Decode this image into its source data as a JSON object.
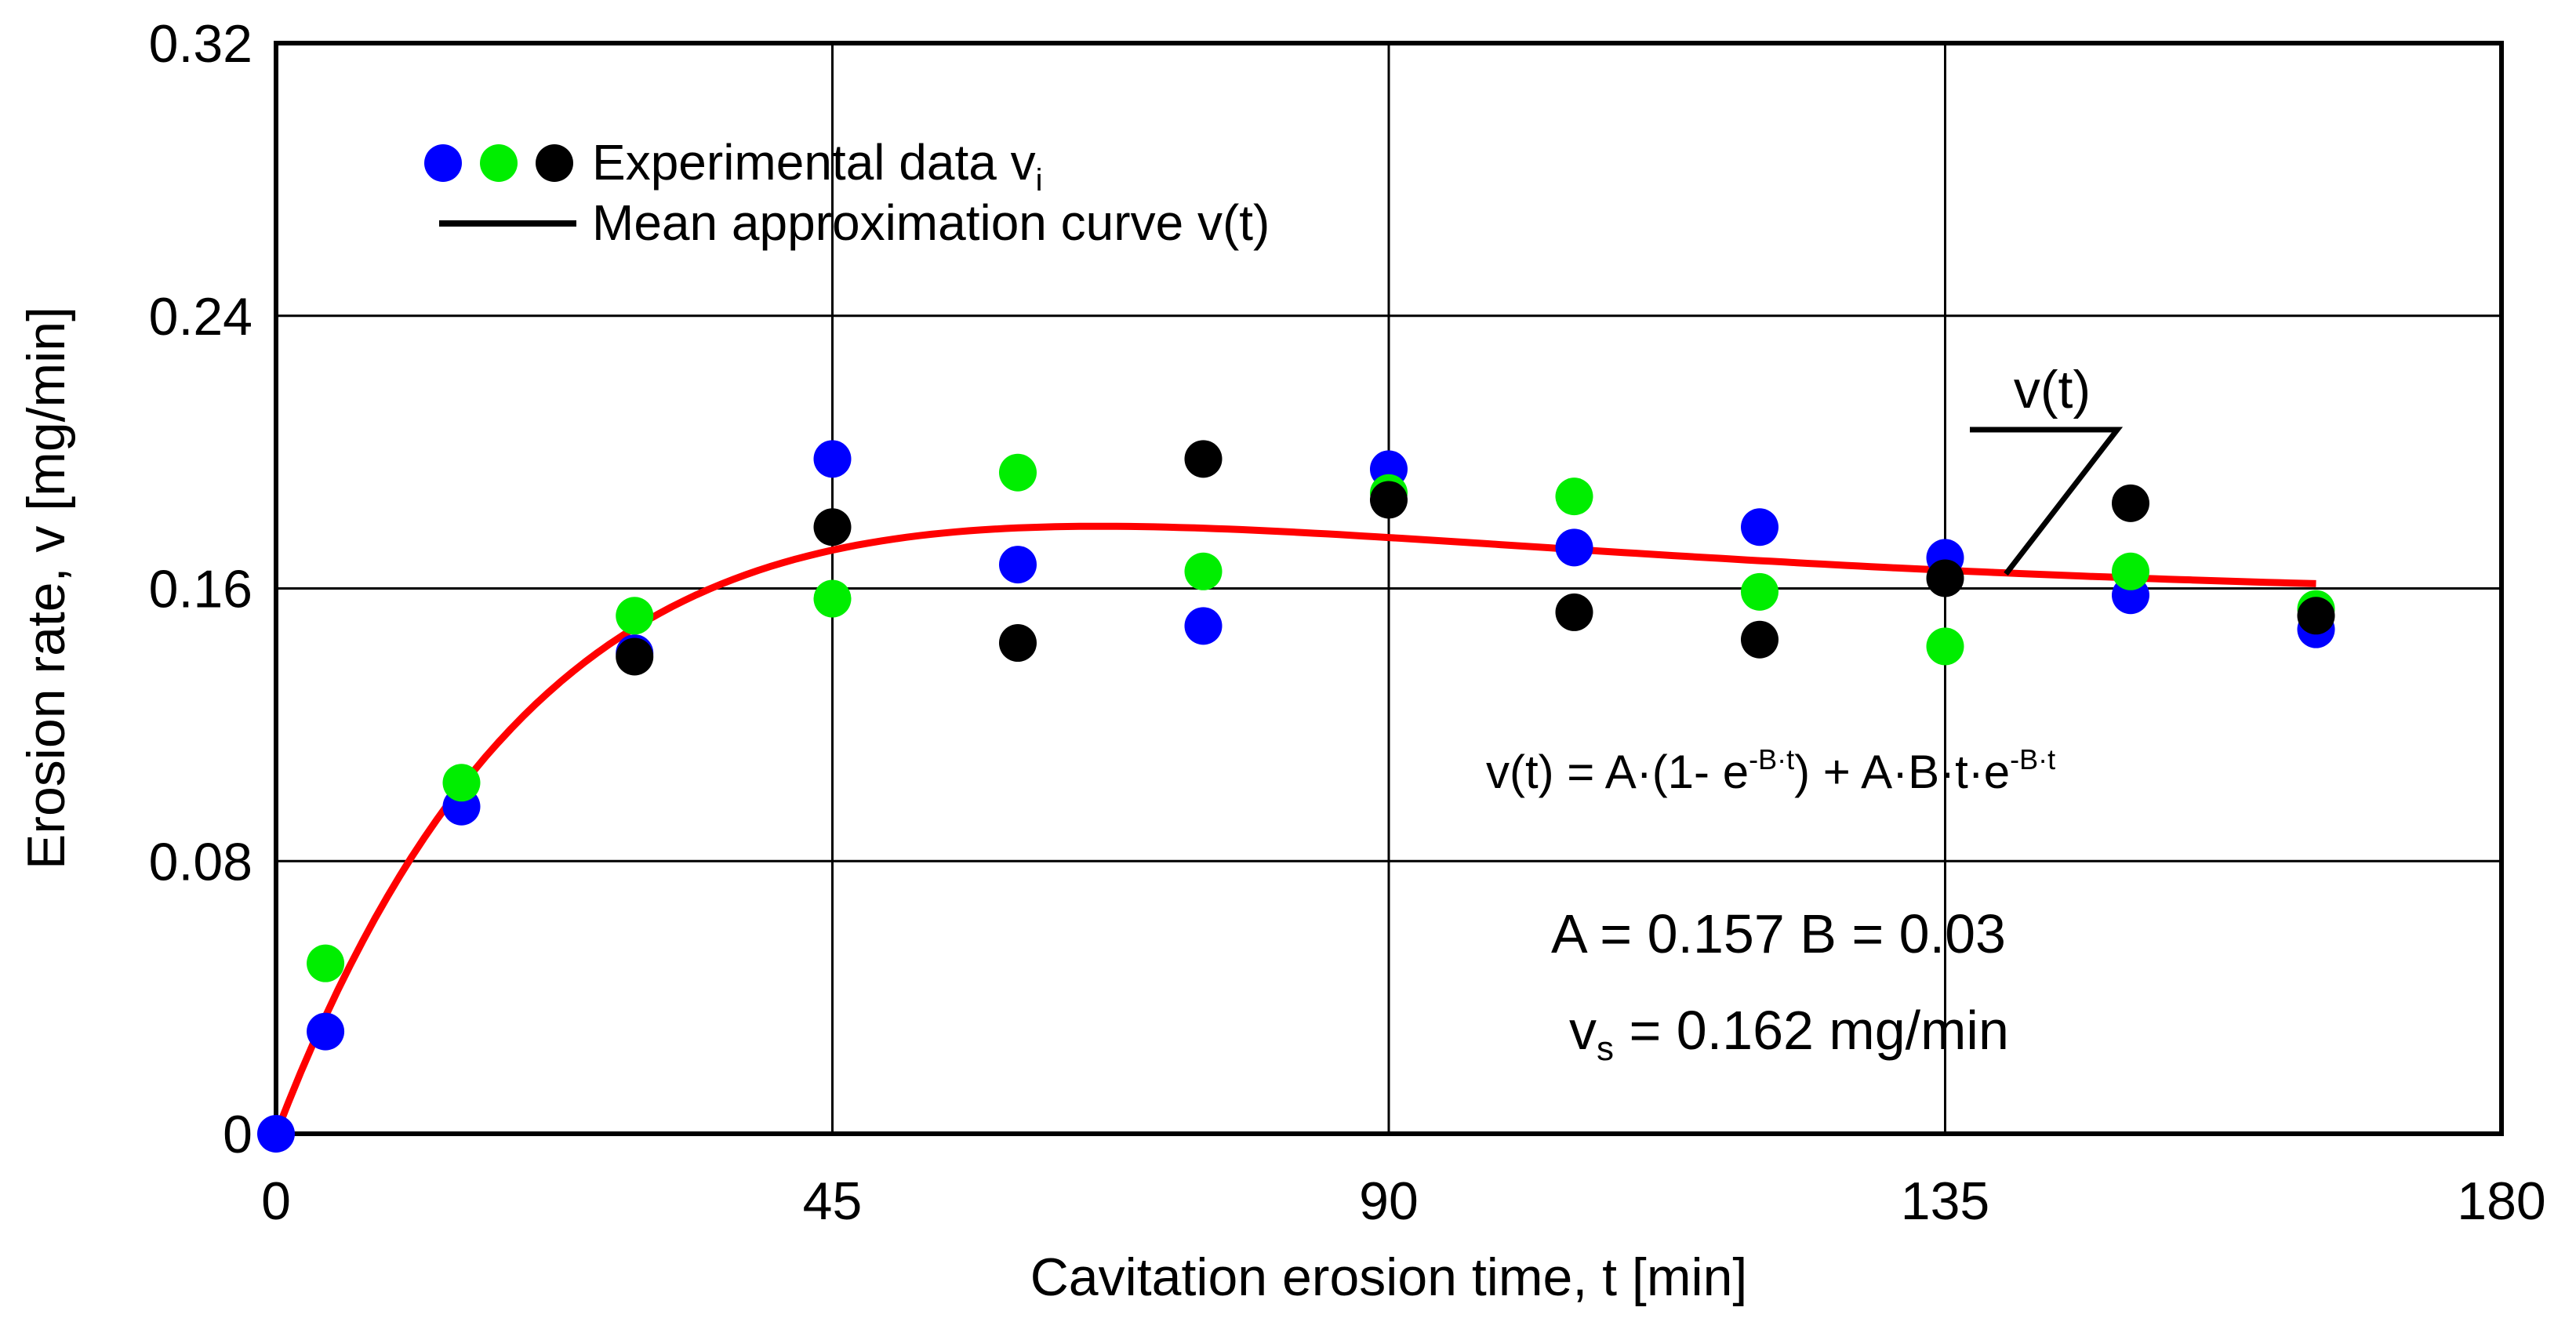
{
  "chart_data": {
    "type": "scatter",
    "title": "",
    "xlabel": "Cavitation erosion time, t [min]",
    "ylabel": "Erosion rate, v [mg/min]",
    "xlim": [
      0,
      180
    ],
    "ylim": [
      0,
      0.32
    ],
    "x_ticks": [
      0,
      45,
      90,
      135,
      180
    ],
    "x_tick_labels": [
      "0",
      "45",
      "90",
      "135",
      "180"
    ],
    "y_ticks": [
      0,
      0.08,
      0.16,
      0.24,
      0.32
    ],
    "y_tick_labels": [
      "0",
      "0.08",
      "0.16",
      "0.24",
      "0.32"
    ],
    "grid": true,
    "legend": {
      "position": "top-left",
      "scatter_label": "Experimental data v",
      "scatter_subscript": "i",
      "line_label": "Mean approximation curve v(t)"
    },
    "series": [
      {
        "name": "Experimental data (blue)",
        "color": "#0000ff",
        "x": [
          0,
          4,
          15,
          29,
          45,
          60,
          75,
          90,
          105,
          120,
          135,
          150,
          165
        ],
        "y": [
          0,
          0.03,
          0.096,
          0.141,
          0.198,
          0.167,
          0.149,
          0.195,
          0.172,
          0.178,
          0.169,
          0.158,
          0.148
        ]
      },
      {
        "name": "Experimental data (green)",
        "color": "#00ee00",
        "x": [
          4,
          15,
          29,
          45,
          60,
          75,
          90,
          105,
          120,
          135,
          150,
          165
        ],
        "y": [
          0.05,
          0.103,
          0.152,
          0.157,
          0.194,
          0.165,
          0.188,
          0.187,
          0.159,
          0.143,
          0.165,
          0.154
        ]
      },
      {
        "name": "Experimental data (black)",
        "color": "#000000",
        "x": [
          29,
          45,
          60,
          75,
          90,
          105,
          120,
          135,
          150,
          165
        ],
        "y": [
          0.14,
          0.178,
          0.144,
          0.198,
          0.186,
          0.153,
          0.145,
          0.163,
          0.185,
          0.152
        ]
      },
      {
        "name": "Mean approximation curve v(t)",
        "type": "line",
        "color": "#ff0000",
        "function": "A*(1-exp(-B*t)) + A*B*t*exp(-B*t)",
        "t_range": [
          0,
          165
        ]
      }
    ],
    "annotations": {
      "curve_label": "v(t)",
      "formula": {
        "lhs": "v(t) = A·(1- e",
        "sup1": "-B·t",
        "mid": ") + A·B·t·e",
        "sup2": "-B·t"
      },
      "params_line": "A = 0.157  B = 0.03",
      "params": {
        "A": 0.157,
        "B": 0.03
      },
      "vs_symbol": "v",
      "vs_subscript": "s",
      "vs_text": " = 0.162 mg/min"
    }
  }
}
